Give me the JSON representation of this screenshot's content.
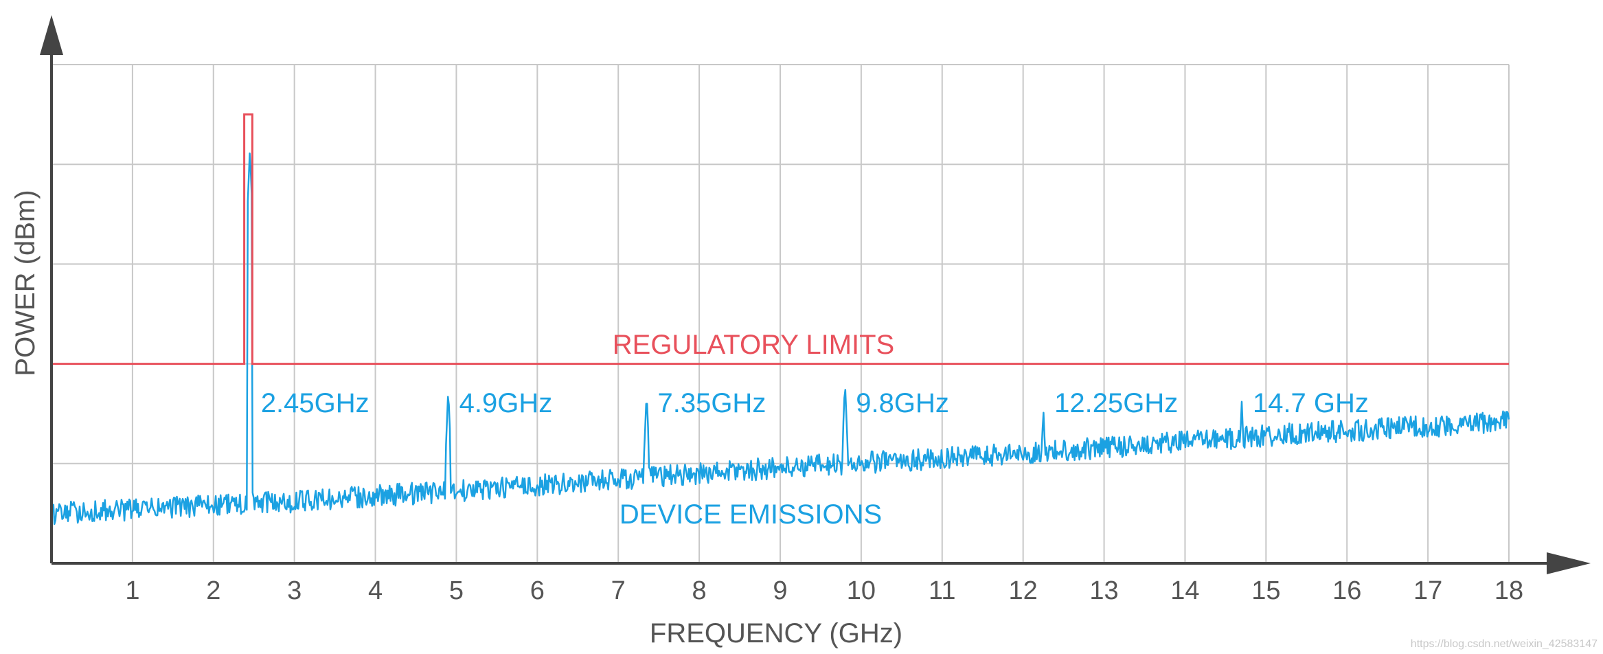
{
  "chart_data": {
    "type": "line",
    "title": "",
    "xlabel": "FREQUENCY (GHz)",
    "ylabel": "POWER (dBm)",
    "xlim": [
      0,
      18
    ],
    "x_ticks": [
      "1",
      "2",
      "3",
      "4",
      "5",
      "6",
      "7",
      "8",
      "9",
      "10",
      "11",
      "12",
      "13",
      "14",
      "15",
      "16",
      "17",
      "18"
    ],
    "y_gridlines": 5,
    "y_ticks_labeled": false,
    "grid": true,
    "legend": "none",
    "colors": {
      "limit": "#e8505b",
      "emissions": "#1ba1e2",
      "grid": "#c8c8c8",
      "axis": "#444444",
      "text": "#555555"
    },
    "series": [
      {
        "name": "REGULATORY LIMITS",
        "points": [
          [
            0,
            2.0
          ],
          [
            2.38,
            2.0
          ],
          [
            2.38,
            4.5
          ],
          [
            2.48,
            4.5
          ],
          [
            2.48,
            2.0
          ],
          [
            18,
            2.0
          ]
        ]
      },
      {
        "name": "DEVICE EMISSIONS",
        "baseline": [
          [
            0,
            0.5
          ],
          [
            3,
            0.62
          ],
          [
            6,
            0.78
          ],
          [
            9,
            0.96
          ],
          [
            12,
            1.1
          ],
          [
            15,
            1.28
          ],
          [
            18,
            1.42
          ]
        ],
        "peaks": [
          {
            "x": 2.45,
            "y": 4.15,
            "label": "2.45GHz"
          },
          {
            "x": 4.9,
            "y": 1.75,
            "label": "4.9GHz"
          },
          {
            "x": 7.35,
            "y": 1.72,
            "label": "7.35GHz"
          },
          {
            "x": 9.8,
            "y": 1.82,
            "label": "9.8GHz"
          },
          {
            "x": 12.25,
            "y": 1.55,
            "label": "12.25GHz"
          },
          {
            "x": 14.7,
            "y": 1.62,
            "label": "14.7 GHz"
          }
        ]
      }
    ]
  },
  "watermark": "https://blog.csdn.net/weixin_42583147"
}
